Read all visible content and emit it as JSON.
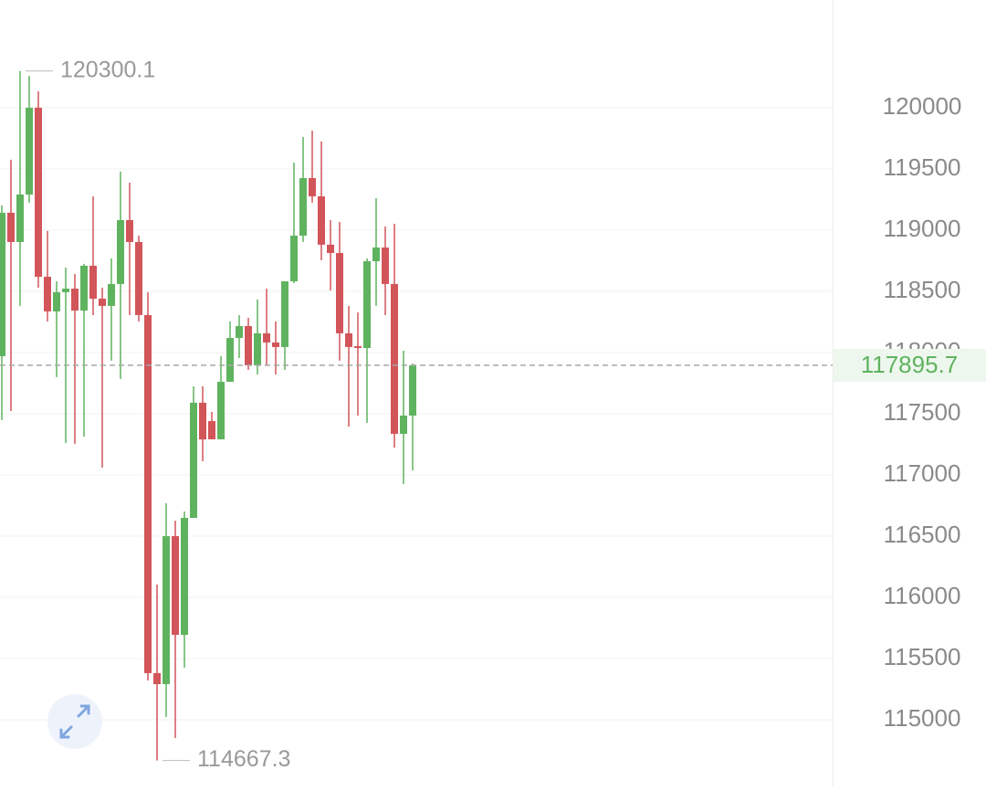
{
  "chart_data": {
    "type": "candlestick",
    "up_color": "#5fb35f",
    "down_color": "#d2555a",
    "grid": true,
    "ylim": [
      114500,
      120880
    ],
    "yticks": [
      115000,
      115500,
      116000,
      116500,
      117000,
      117500,
      118000,
      118500,
      119000,
      119500,
      120000
    ],
    "open": [
      117970,
      119142,
      118903,
      119291,
      120000,
      118619,
      118336,
      118493,
      118522,
      118343,
      118709,
      118440,
      118381,
      118560,
      119082,
      118903,
      118306,
      115381,
      115291,
      116500,
      115694,
      116649,
      117590,
      117440,
      117291,
      117761,
      118119,
      118216,
      117896,
      118157,
      118082,
      118045,
      118582,
      118955,
      119425,
      119276,
      118881,
      118813,
      118157,
      118052,
      118037,
      118746,
      118858,
      118560,
      117336,
      117485
    ],
    "high": [
      119201,
      119575,
      120300.1,
      120261,
      120134,
      118993,
      118582,
      118694,
      118642,
      118724,
      119276,
      118530,
      118769,
      119478,
      119388,
      118955,
      118493,
      116104,
      116769,
      116627,
      116701,
      117724,
      117724,
      117515,
      117970,
      118254,
      118306,
      118284,
      118433,
      118522,
      118254,
      118582,
      119552,
      119761,
      119813,
      119724,
      119082,
      119067,
      118381,
      118328,
      118769,
      119261,
      119030,
      119052,
      118015,
      117910
    ],
    "low": [
      117448,
      117522,
      118381,
      119224,
      118530,
      118254,
      117799,
      117261,
      117254,
      117313,
      118306,
      117060,
      117933,
      117784,
      118306,
      118254,
      115321,
      114667.3,
      115022,
      114851,
      115425,
      116649,
      117112,
      117291,
      117291,
      117761,
      117955,
      117858,
      117821,
      117896,
      117821,
      117858,
      118567,
      118903,
      119224,
      118754,
      118507,
      117933,
      117395,
      117485,
      117425,
      118381,
      118306,
      117224,
      116925,
      117037
    ],
    "close": [
      119142,
      118903,
      119291,
      120000,
      118619,
      118336,
      118493,
      118522,
      118343,
      118709,
      118440,
      118381,
      118560,
      119082,
      118903,
      118306,
      115381,
      115291,
      116500,
      115694,
      116649,
      117590,
      117290,
      117291,
      117761,
      118119,
      118216,
      117896,
      118157,
      118082,
      118045,
      118582,
      118955,
      119425,
      119276,
      118881,
      118813,
      118157,
      118045,
      118037,
      118746,
      118858,
      118560,
      117336,
      117485,
      117895.7
    ]
  }
}
